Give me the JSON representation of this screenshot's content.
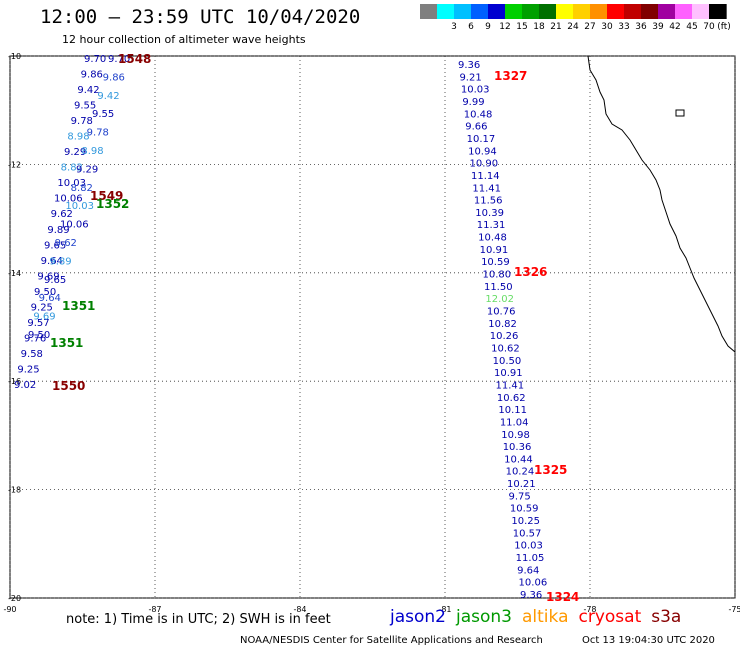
{
  "header": {
    "title": "12:00 – 23:59 UTC 10/04/2020",
    "subtitle": "12 hour collection of altimeter wave heights"
  },
  "colorbar": {
    "unit": "(ft)",
    "entries": [
      {
        "label": "",
        "color": "#7f7f7f"
      },
      {
        "label": "3",
        "color": "#00ffff"
      },
      {
        "label": "6",
        "color": "#00c0ff"
      },
      {
        "label": "9",
        "color": "#0060ff"
      },
      {
        "label": "12",
        "color": "#0000d0"
      },
      {
        "label": "15",
        "color": "#00d000"
      },
      {
        "label": "18",
        "color": "#00a000"
      },
      {
        "label": "21",
        "color": "#007000"
      },
      {
        "label": "24",
        "color": "#ffff00"
      },
      {
        "label": "27",
        "color": "#ffd000"
      },
      {
        "label": "30",
        "color": "#ff9000"
      },
      {
        "label": "33",
        "color": "#ff0000"
      },
      {
        "label": "36",
        "color": "#c00000"
      },
      {
        "label": "39",
        "color": "#800000"
      },
      {
        "label": "42",
        "color": "#a000a0"
      },
      {
        "label": "45",
        "color": "#ff60ff"
      },
      {
        "label": "70",
        "color": "#ffc0ff"
      },
      {
        "label": "",
        "color": "#000000"
      }
    ]
  },
  "map": {
    "lon_range": [
      -90,
      -75
    ],
    "lat_range": [
      -20,
      -10
    ],
    "lon_ticks": [
      "-90",
      "-87",
      "-84",
      "-81",
      "-78",
      "-75"
    ],
    "lat_ticks": [
      "-10",
      "-12",
      "-14",
      "-16",
      "-18",
      "-20"
    ],
    "right_track": {
      "color": "#0000aa",
      "values": [
        "9.36",
        "9.21",
        "10.03",
        "9.99",
        "10.48",
        "9.66",
        "10.17",
        "10.94",
        "10.90",
        "11.14",
        "11.41",
        "11.56",
        "10.39",
        "11.31",
        "10.48",
        "10.91",
        "10.59",
        "10.80",
        "11.50",
        "12.02",
        "10.76",
        "10.82",
        "10.26",
        "10.62",
        "10.50",
        "10.91",
        "11.41",
        "10.62",
        "10.11",
        "11.04",
        "10.98",
        "10.36",
        "10.44",
        "10.24",
        "10.21",
        "9.75",
        "10.59",
        "10.25",
        "10.57",
        "10.03",
        "11.05",
        "9.64",
        "10.06",
        "9.36"
      ],
      "highlight": {
        "index": 19,
        "color": "#66dd66"
      }
    },
    "left_track_values": [
      "9.70",
      "9.86",
      "9.42",
      "9.55",
      "9.78",
      "8.98",
      "9.29",
      "8.82",
      "10.03",
      "10.06",
      "9.62",
      "9.89",
      "9.65",
      "9.64",
      "9.69",
      "9.50",
      "9.25",
      "9.57",
      "9.76",
      "9.58",
      "9.25",
      "9.02"
    ],
    "time_labels": [
      {
        "text": "1548",
        "color": "#880000"
      },
      {
        "text": "1327",
        "color": "#ff0000"
      },
      {
        "text": "1549",
        "color": "#880000"
      },
      {
        "text": "1352",
        "color": "#008000"
      },
      {
        "text": "1326",
        "color": "#ff0000"
      },
      {
        "text": "1351",
        "color": "#008000"
      },
      {
        "text": "1351",
        "color": "#008000"
      },
      {
        "text": "1550",
        "color": "#880000"
      },
      {
        "text": "1325",
        "color": "#ff0000"
      },
      {
        "text": "1324",
        "color": "#ff0000"
      }
    ]
  },
  "footer": {
    "note": "note: 1) Time is in UTC; 2) SWH is in feet",
    "legend": [
      {
        "label": "jason2",
        "color": "#0000cc"
      },
      {
        "label": "jason3",
        "color": "#009900"
      },
      {
        "label": "altika",
        "color": "#ff9900"
      },
      {
        "label": "cryosat",
        "color": "#ff0000"
      },
      {
        "label": "s3a",
        "color": "#880000"
      }
    ],
    "credit": "NOAA/NESDIS Center for Satellite Applications and Research",
    "timestamp": "Oct 13 19:04:30 UTC 2020"
  }
}
